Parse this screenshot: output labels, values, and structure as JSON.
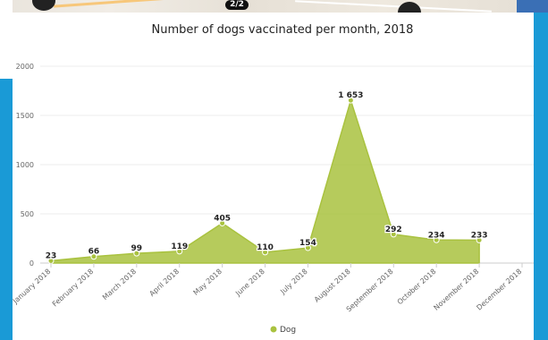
{
  "map_badge": "2/2",
  "chart_data": {
    "type": "area",
    "title": "Number of dogs vaccinated per month, 2018",
    "xlabel": "",
    "ylabel": "",
    "categories": [
      "January 2018",
      "February 2018",
      "March 2018",
      "April 2018",
      "May 2018",
      "June 2018",
      "July 2018",
      "August 2018",
      "September 2018",
      "October 2018",
      "November 2018",
      "December 2018"
    ],
    "series": [
      {
        "name": "Dog",
        "color": "#a9c23f",
        "values": [
          23,
          66,
          99,
          119,
          405,
          110,
          154,
          1653,
          292,
          234,
          233,
          null
        ],
        "labels": [
          "23",
          "66",
          "99",
          "119",
          "405",
          "110",
          "154",
          "1 653",
          "292",
          "234",
          "233",
          ""
        ]
      }
    ],
    "ylim": [
      0,
      2000
    ],
    "yticks": [
      "0",
      "500",
      "1000",
      "1500",
      "2000"
    ],
    "grid": true,
    "legend": "bottom"
  }
}
